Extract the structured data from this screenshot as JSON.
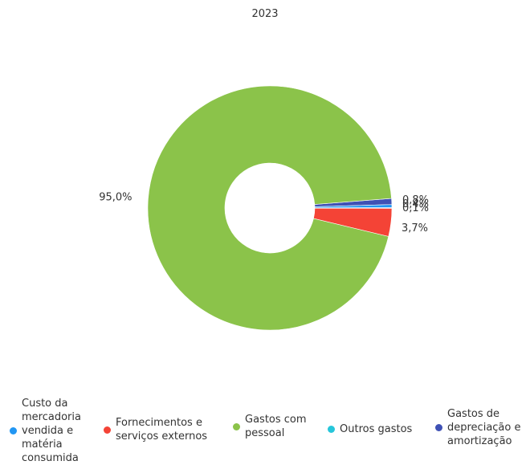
{
  "chart_data": {
    "type": "pie",
    "variant": "donut",
    "title": "2023",
    "categories": [
      "Custo da mercadoria vendida e matéria consumida",
      "Fornecimentos e serviços externos",
      "Gastos com pessoal",
      "Outros gastos",
      "Gastos de depreciação e amortização"
    ],
    "values": [
      0.4,
      3.7,
      95.0,
      0.1,
      0.8
    ],
    "data_labels": [
      "0,4%",
      "3,7%",
      "95,0%",
      "0,1%",
      "0,8%"
    ],
    "colors": [
      "#2196f3",
      "#f44336",
      "#8bc34a",
      "#26c6da",
      "#3f51b5"
    ],
    "legend_labels": [
      "Custo da\nmercadoria\nvendida e\nmatéria\nconsumida",
      "Fornecimentos e\nserviços externos",
      "Gastos com\npessoal",
      "Outros gastos",
      "Gastos de\ndepreciação e\namortização"
    ],
    "legend_position": "bottom"
  }
}
